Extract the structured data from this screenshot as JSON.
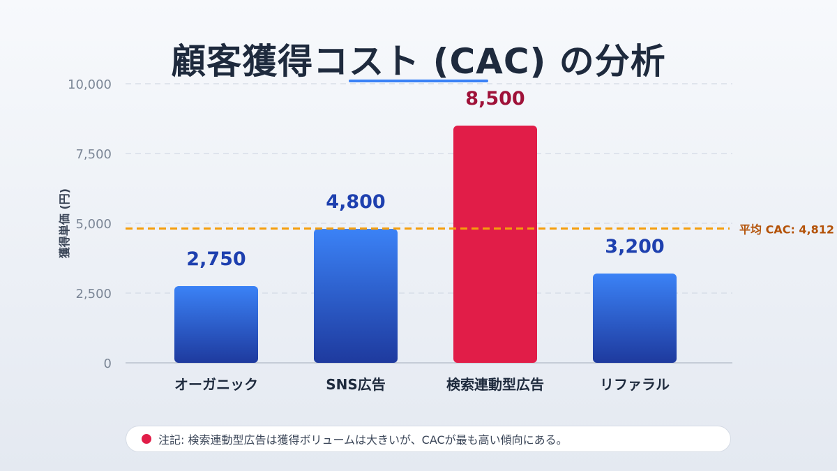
{
  "chart_data": {
    "type": "bar",
    "title": "顧客獲得コスト (CAC) の分析",
    "xlabel": "",
    "ylabel": "獲得単価 (円)",
    "ylim": [
      0,
      10000
    ],
    "yticks": [
      0,
      2500,
      5000,
      7500,
      10000
    ],
    "ytick_labels": [
      "0",
      "2,500",
      "5,000",
      "7,500",
      "10,000"
    ],
    "grid": true,
    "categories": [
      "オーガニック",
      "SNS広告",
      "検索連動型広告",
      "リファラル"
    ],
    "values": [
      2750,
      4800,
      8500,
      3200
    ],
    "data_labels": [
      "2,750",
      "4,800",
      "8,500",
      "3,200"
    ],
    "highlight_index": 2,
    "average": {
      "value": 4812.5,
      "label": "平均 CAC: 4,812"
    },
    "colors": {
      "bar_top": "#3b82f6",
      "bar_bottom": "#1e3a9e",
      "highlight": "#e11d48",
      "label": "#1e40af",
      "highlight_label": "#9f1239",
      "average_line": "#f59e0b",
      "average_label": "#b45309"
    }
  },
  "note": {
    "text": "注記: 検索連動型広告は獲得ボリュームは大きいが、CACが最も高い傾向にある。"
  }
}
